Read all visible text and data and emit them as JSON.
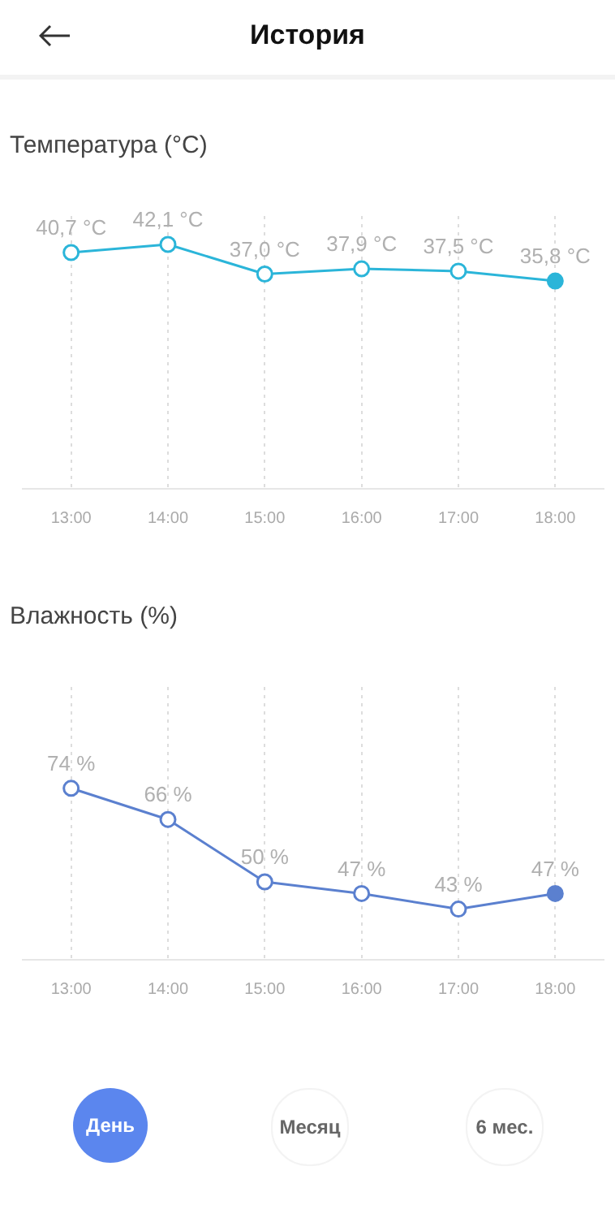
{
  "chart_data": [
    {
      "type": "other",
      "title": "История"
    },
    {
      "type": "line",
      "title": "Температура (°C)",
      "categories": [
        "13:00",
        "14:00",
        "15:00",
        "16:00",
        "17:00",
        "18:00"
      ],
      "series": [
        {
          "color": "#2bb5d9",
          "values": [
            40.7,
            42.1,
            37.0,
            37.9,
            37.5,
            35.8
          ],
          "value_labels": [
            "40,7 °C",
            "42,1 °C",
            "37,0 °C",
            "37,9 °C",
            "37,5 °C",
            "35,8 °C"
          ]
        }
      ],
      "ylim": [
        0,
        47
      ],
      "tick_labels": "x",
      "grid": "x",
      "marker": "circle",
      "line_style": "solid"
    },
    {
      "type": "line",
      "title": "Влажность (%)",
      "categories": [
        "13:00",
        "14:00",
        "15:00",
        "16:00",
        "17:00",
        "18:00"
      ],
      "series": [
        {
          "color": "#5b80cf",
          "values": [
            74,
            66,
            50,
            47,
            43,
            47
          ],
          "value_labels": [
            "74 %",
            "66 %",
            "50 %",
            "47 %",
            "43 %",
            "47 %"
          ]
        }
      ],
      "ylim": [
        30,
        100
      ],
      "tick_labels": "x",
      "grid": "x",
      "marker": "circle",
      "line_style": "solid"
    },
    {
      "type": "other",
      "annotations": [
        "День",
        "Месяц",
        "6 мес."
      ]
    }
  ]
}
